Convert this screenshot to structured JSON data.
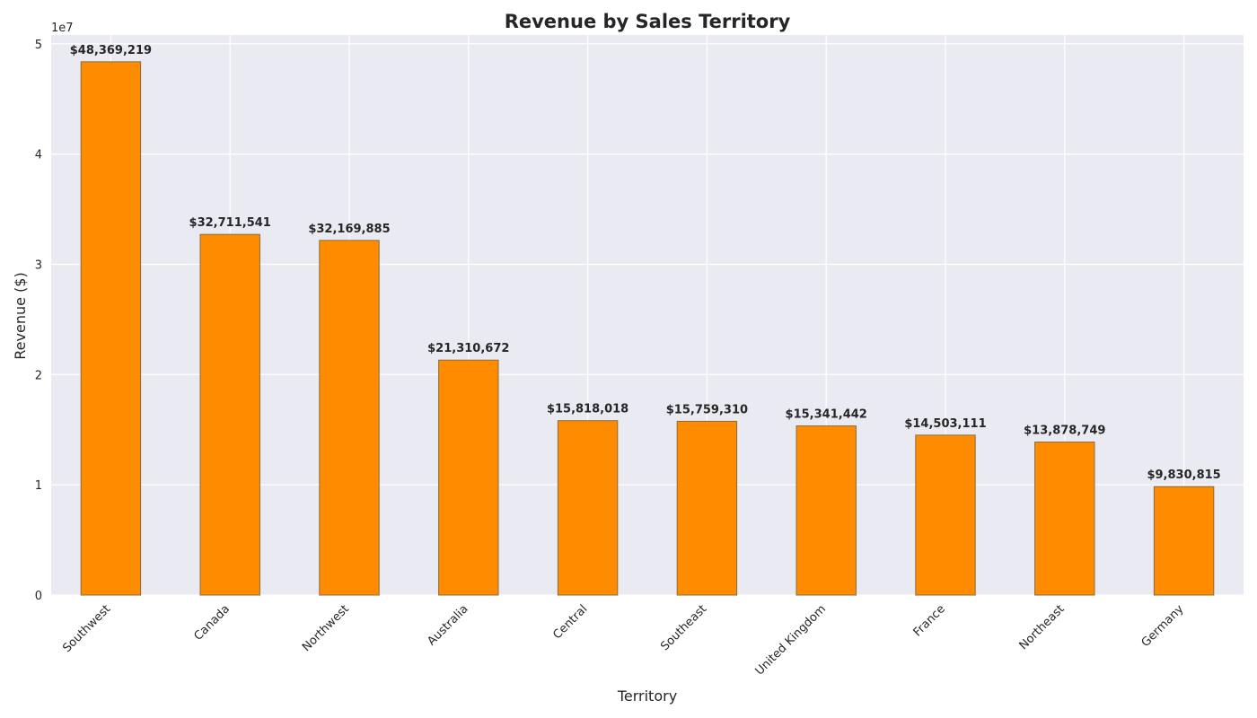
{
  "chart_data": {
    "type": "bar",
    "title": "Revenue by Sales Territory",
    "xlabel": "Territory",
    "ylabel": "Revenue ($)",
    "y_offset_label": "1e7",
    "ylim": [
      0,
      50800000
    ],
    "y_ticks": [
      0,
      10000000,
      20000000,
      30000000,
      40000000,
      50000000
    ],
    "y_tick_labels": [
      "0",
      "1",
      "2",
      "3",
      "4",
      "5"
    ],
    "categories": [
      "Southwest",
      "Canada",
      "Northwest",
      "Australia",
      "Central",
      "Southeast",
      "United Kingdom",
      "France",
      "Northeast",
      "Germany"
    ],
    "values": [
      48369219,
      32711541,
      32169885,
      21310672,
      15818018,
      15759310,
      15341442,
      14503111,
      13878749,
      9830815
    ],
    "value_labels": [
      "$48,369,219",
      "$32,711,541",
      "$32,169,885",
      "$21,310,672",
      "$15,818,018",
      "$15,759,310",
      "$15,341,442",
      "$14,503,111",
      "$13,878,749",
      "$9,830,815"
    ],
    "grid": true,
    "colors": {
      "bar": "#ff8c00",
      "bar_edge": "#8b6a3c",
      "plot_background": "#eaeaf2",
      "grid": "#ffffff"
    }
  }
}
